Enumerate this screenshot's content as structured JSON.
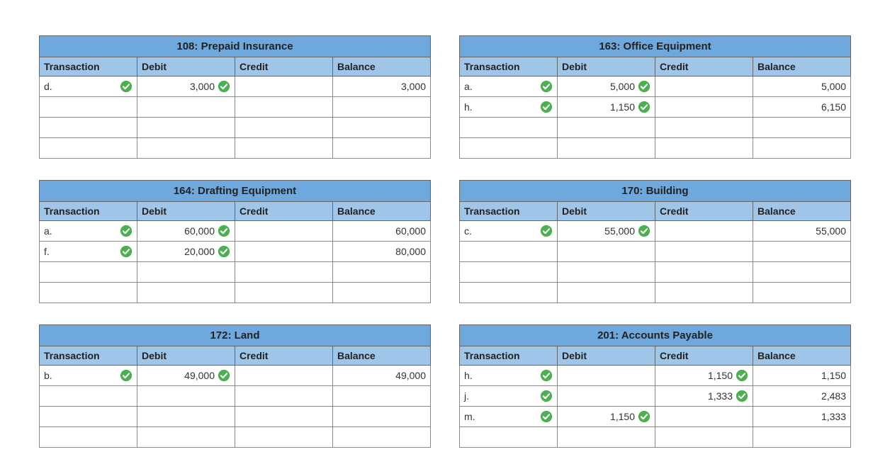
{
  "columns": [
    "Transaction",
    "Debit",
    "Credit",
    "Balance"
  ],
  "min_rows": 4,
  "col_widths_pct": [
    25,
    25,
    25,
    25
  ],
  "colors": {
    "title_bg": "#6fa8dc",
    "header_bg": "#9fc5e8",
    "border": "#666666",
    "cell_border": "#888888",
    "check_fill": "#4caf50",
    "check_stroke": "#ffffff",
    "text": "#333333"
  },
  "left": [
    {
      "title": "108: Prepaid Insurance",
      "rows": [
        {
          "txn": "d.",
          "txn_ok": true,
          "debit": "3,000",
          "debit_ok": true,
          "credit": "",
          "balance": "3,000"
        }
      ]
    },
    {
      "title": "164: Drafting Equipment",
      "rows": [
        {
          "txn": "a.",
          "txn_ok": true,
          "debit": "60,000",
          "debit_ok": true,
          "credit": "",
          "balance": "60,000"
        },
        {
          "txn": "f.",
          "txn_ok": true,
          "debit": "20,000",
          "debit_ok": true,
          "credit": "",
          "balance": "80,000"
        }
      ]
    },
    {
      "title": "172: Land",
      "rows": [
        {
          "txn": "b.",
          "txn_ok": true,
          "debit": "49,000",
          "debit_ok": true,
          "credit": "",
          "balance": "49,000"
        }
      ]
    }
  ],
  "right": [
    {
      "title": "163: Office Equipment",
      "rows": [
        {
          "txn": "a.",
          "txn_ok": true,
          "debit": "5,000",
          "debit_ok": true,
          "credit": "",
          "balance": "5,000"
        },
        {
          "txn": "h.",
          "txn_ok": true,
          "debit": "1,150",
          "debit_ok": true,
          "credit": "",
          "balance": "6,150"
        }
      ]
    },
    {
      "title": "170: Building",
      "rows": [
        {
          "txn": "c.",
          "txn_ok": true,
          "debit": "55,000",
          "debit_ok": true,
          "credit": "",
          "balance": "55,000"
        }
      ]
    },
    {
      "title": "201: Accounts Payable",
      "rows": [
        {
          "txn": "h.",
          "txn_ok": true,
          "debit": "",
          "credit": "1,150",
          "credit_ok": true,
          "balance": "1,150"
        },
        {
          "txn": "j.",
          "txn_ok": true,
          "debit": "",
          "credit": "1,333",
          "credit_ok": true,
          "balance": "2,483"
        },
        {
          "txn": "m.",
          "txn_ok": true,
          "debit": "1,150",
          "debit_ok": true,
          "credit": "",
          "balance": "1,333"
        }
      ]
    }
  ]
}
